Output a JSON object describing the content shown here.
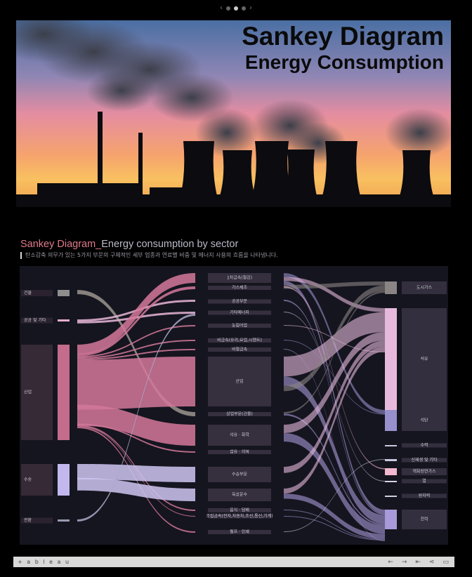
{
  "hero": {
    "title_line1": "Sankey Diagram",
    "title_line2": "Energy Consumption"
  },
  "section": {
    "title_highlight": "Sankey Diagram_",
    "title_rest": "Energy consumption by sector",
    "subtitle": "탄소감축 의무가 있는 5가지 부문의 구체적인 세부 업종과 연료별 비중 및 에너지 사용의 흐름을 나타냅니다."
  },
  "chart_data": {
    "type": "sankey",
    "title": "Sankey Diagram_Energy consumption by sector",
    "sectors": [
      "건물",
      "공공 및 기타",
      "산업",
      "수송",
      "전환"
    ],
    "subsectors": [
      "1차금속(철강)",
      "가스제조",
      "공공부문",
      "기타에너지",
      "농림어업",
      "비금속(유리,요업,시멘트)",
      "비철금속",
      "산업",
      "상업부문(건물)",
      "석유 · 화학",
      "섬유 · 의복",
      "수송부문",
      "육상운수",
      "음식 · 담배",
      "조립금속(전자,자동차,조선,통신,기계)",
      "펄프 · 인쇄"
    ],
    "fuels": [
      "도시가스",
      "석유",
      "석탄",
      "수력",
      "신재생 및 기타",
      "액화천연가스",
      "열",
      "원자력",
      "전력"
    ]
  },
  "toolbar": {
    "brand": "+ a b l e a u",
    "icons": [
      "undo-icon",
      "redo-icon",
      "revert-icon",
      "share-icon",
      "comment-icon"
    ]
  }
}
